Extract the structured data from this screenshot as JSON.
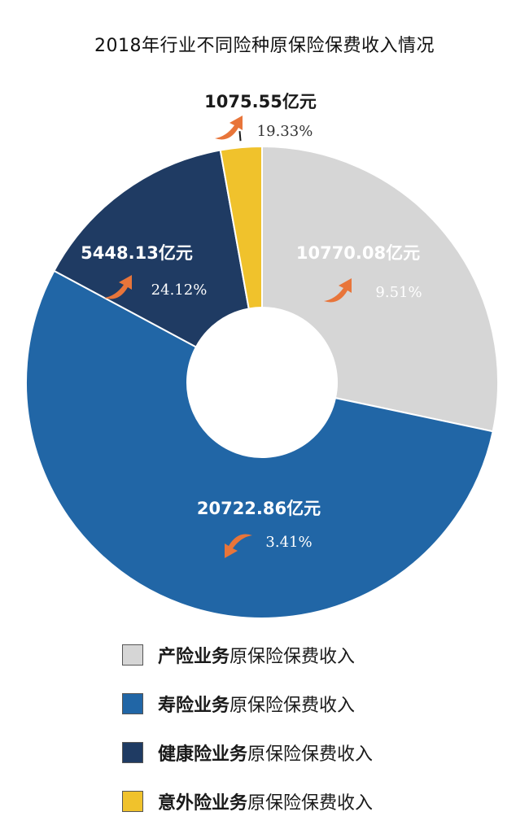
{
  "title": "2018年行业不同险种原保险保费收入情况",
  "colors": {
    "property": "#d6d6d6",
    "life": "#2166a6",
    "health": "#1f3b63",
    "accident": "#f0c22c",
    "arrow": "#e8753a"
  },
  "legend": [
    {
      "strong": "产险业务",
      "suffix": "原保险保费收入",
      "color_key": "property"
    },
    {
      "strong": "寿险业务",
      "suffix": "原保险保费收入",
      "color_key": "life"
    },
    {
      "strong": "健康险业务",
      "suffix": "原保险保费收入",
      "color_key": "health"
    },
    {
      "strong": "意外险业务",
      "suffix": "原保险保费收入",
      "color_key": "accident"
    }
  ],
  "chart_data": {
    "type": "pie",
    "variant": "donut",
    "title": "2018年行业不同险种原保险保费收入情况",
    "unit": "亿元",
    "slices": [
      {
        "label": "产险业务",
        "value": 10770.08,
        "value_label": "10770.08亿元",
        "growth": "9.51%",
        "growth_direction": "up",
        "color_key": "property"
      },
      {
        "label": "寿险业务",
        "value": 20722.86,
        "value_label": "20722.86亿元",
        "growth": "3.41%",
        "growth_direction": "down",
        "color_key": "life"
      },
      {
        "label": "健康险业务",
        "value": 5448.13,
        "value_label": "5448.13亿元",
        "growth": "24.12%",
        "growth_direction": "up",
        "color_key": "health"
      },
      {
        "label": "意外险业务",
        "value": 1075.55,
        "value_label": "1075.55亿元",
        "growth": "19.33%",
        "growth_direction": "up",
        "color_key": "accident"
      }
    ]
  }
}
